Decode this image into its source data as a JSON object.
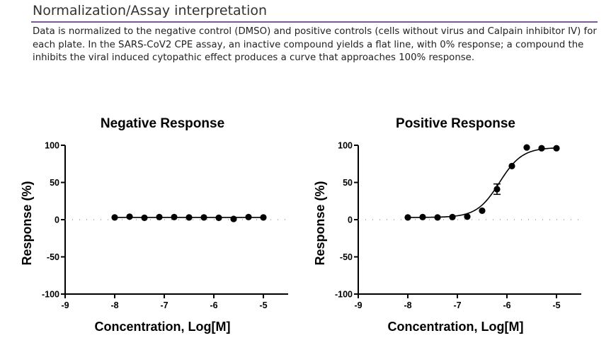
{
  "section": {
    "title": "Normalization/Assay interpretation",
    "description": "Data is normalized to the negative control (DMSO) and positive controls (cells without virus and Calpain inhibitor IV) for each plate. In the SARS-CoV2 CPE assay, an inactive compound yields a flat line, with 0% response; a compound the inhibits the viral induced cytopathic effect produces a curve that approaches 100% response."
  },
  "chart_data": [
    {
      "type": "scatter",
      "title": "Negative Response",
      "xlabel": "Concentration, Log[M]",
      "ylabel": "Response (%)",
      "xlim": [
        -9,
        -4.5
      ],
      "ylim": [
        -100,
        100
      ],
      "xticks": [
        -9,
        -8,
        -7,
        -6,
        -5
      ],
      "yticks": [
        100,
        50,
        0,
        -50,
        -100
      ],
      "reference_line_y": 0,
      "grid": false,
      "series": [
        {
          "x": [
            -8.0,
            -7.7,
            -7.4,
            -7.1,
            -6.8,
            -6.5,
            -6.2,
            -5.9,
            -5.6,
            -5.3,
            -5.0
          ],
          "y": [
            3,
            4,
            2.5,
            3.5,
            3.5,
            3,
            3,
            2.5,
            1,
            3.5,
            3
          ],
          "error": [
            0,
            0,
            0,
            0,
            0,
            0,
            0,
            0,
            0,
            0,
            0
          ],
          "fit": {
            "type": "flat",
            "from": -8.0,
            "to": -5.0,
            "y": 3
          }
        }
      ]
    },
    {
      "type": "scatter",
      "title": "Positive Response",
      "xlabel": "Concentration, Log[M]",
      "ylabel": "Response (%)",
      "xlim": [
        -9,
        -4.5
      ],
      "ylim": [
        -100,
        100
      ],
      "xticks": [
        -9,
        -8,
        -7,
        -6,
        -5
      ],
      "yticks": [
        100,
        50,
        0,
        -50,
        -100
      ],
      "reference_line_y": 0,
      "grid": false,
      "series": [
        {
          "x": [
            -8.0,
            -7.7,
            -7.4,
            -7.1,
            -6.8,
            -6.5,
            -6.2,
            -5.9,
            -5.6,
            -5.3,
            -5.0
          ],
          "y": [
            3,
            3.5,
            3,
            3.5,
            4,
            12,
            41,
            72,
            97,
            96,
            96
          ],
          "error": [
            0,
            0,
            0,
            0,
            0,
            0,
            7,
            0,
            0,
            0,
            0
          ],
          "fit": {
            "type": "sigmoid",
            "from": -8.0,
            "to": -5.0,
            "bottom": 3,
            "top": 97,
            "logEC50": -6.15,
            "hill": 1.9
          }
        }
      ]
    }
  ]
}
